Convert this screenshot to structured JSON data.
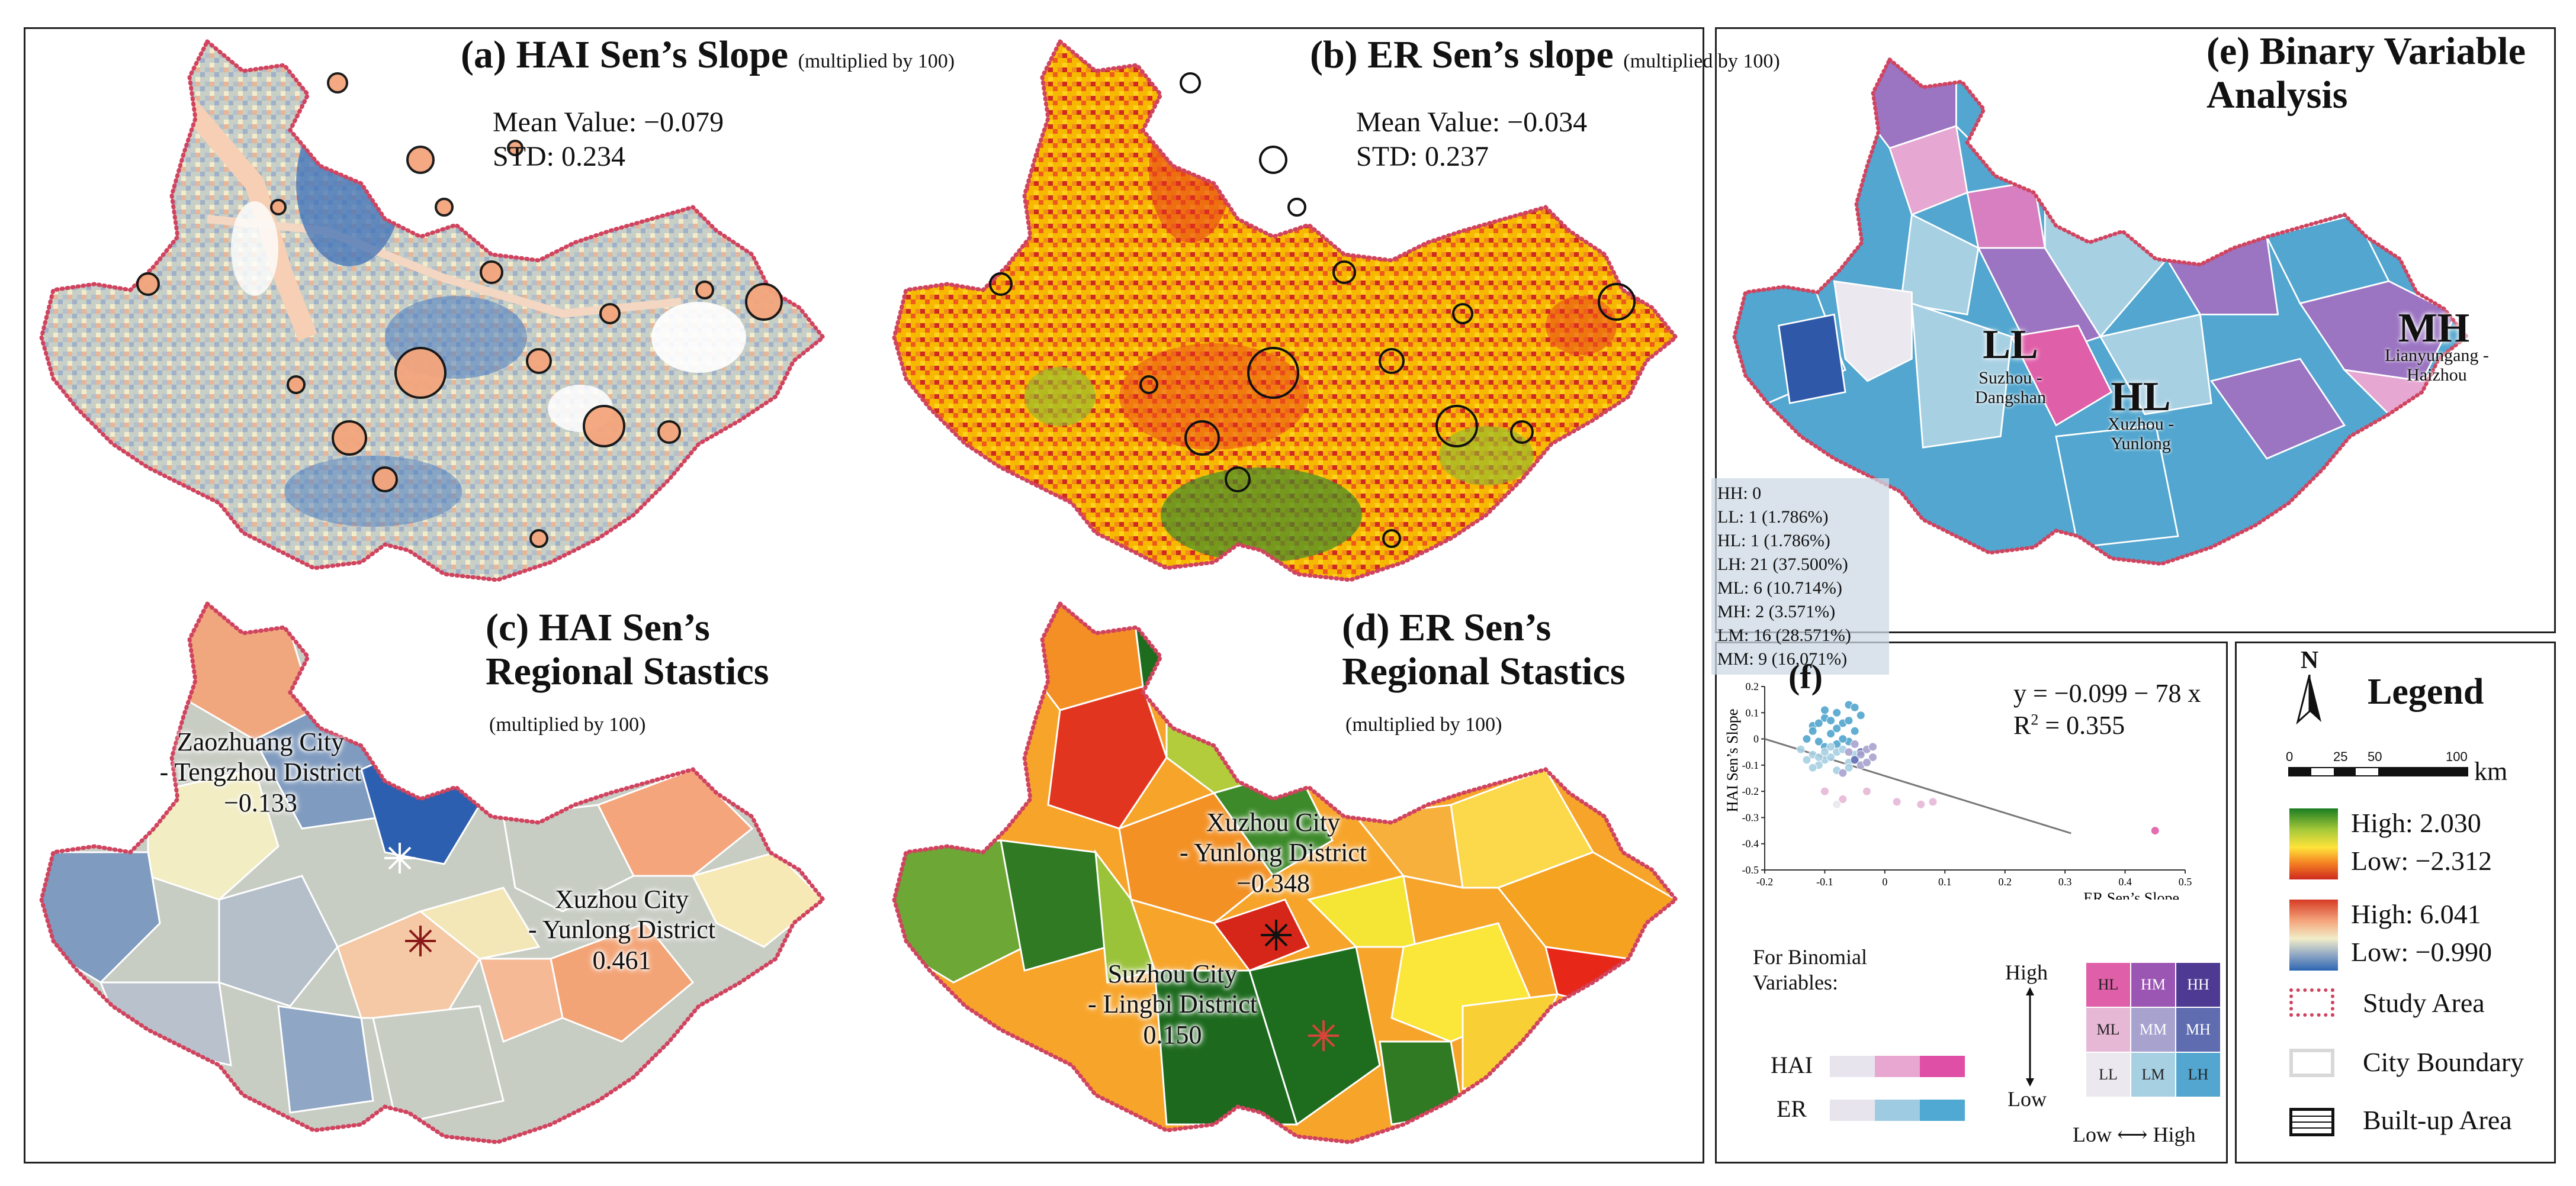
{
  "panel_a": {
    "title": "(a) HAI Sen’s Slope",
    "note": "(multiplied by 100)",
    "mean": "Mean Value: −0.079",
    "std": "STD: 0.234"
  },
  "panel_b": {
    "title": "(b) ER Sen’s slope",
    "note": "(multiplied by 100)",
    "mean": "Mean Value: −0.034",
    "std": "STD: 0.237"
  },
  "panel_c": {
    "title_line1": "(c) HAI Sen’s",
    "title_line2": "Regional Stastics",
    "note": "(multiplied by 100)",
    "label1_line1": "Zaozhuang City",
    "label1_line2": "- Tengzhou District",
    "label1_value": "−0.133",
    "label2_line1": "Xuzhou City",
    "label2_line2": "- Yunlong District",
    "label2_value": "0.461"
  },
  "panel_d": {
    "title_line1": "(d) ER Sen’s",
    "title_line2": "Regional Stastics",
    "note": "(multiplied by 100)",
    "label1_line1": "Xuzhou City",
    "label1_line2": "- Yunlong District",
    "label1_value": "−0.348",
    "label2_line1": "Suzhou City",
    "label2_line2": "- Lingbi District",
    "label2_value": "0.150"
  },
  "panel_e": {
    "title_line1": "(e) Binary Variable",
    "title_line2": "Analysis",
    "ll": {
      "code": "LL",
      "line1": "Suzhou -",
      "line2": "Dangshan"
    },
    "hl": {
      "code": "HL",
      "line1": "Xuzhou -",
      "line2": "Yunlong"
    },
    "mh": {
      "code": "MH",
      "line1": "Lianyungang -",
      "line2": "Haizhou"
    },
    "counts": [
      "HH: 0",
      "LL: 1    (1.786%)",
      "HL: 1    (1.786%)",
      "LH: 21  (37.500%)",
      "ML: 6   (10.714%)",
      "MH: 2   (3.571%)",
      "LM: 16 (28.571%)",
      "MM: 9   (16.071%)"
    ]
  },
  "panel_f": {
    "label": "(f)",
    "equation": "y = −0.099 − 78 x",
    "r2_prefix": "R",
    "r2_sup": "2",
    "r2_value": " = 0.355",
    "xlabel": "ER Sen’s Slope",
    "ylabel": "HAI Sen’s Slope",
    "binomial_title_line1": "For Binomial",
    "binomial_title_line2": "Variables:",
    "hai": "HAI",
    "er": "ER",
    "high": "High",
    "low": "Low",
    "low_high": "Low ⟷ High",
    "matrix": [
      [
        "HL",
        "HM",
        "HH"
      ],
      [
        "ML",
        "MM",
        "MH"
      ],
      [
        "LL",
        "LM",
        "LH"
      ]
    ],
    "matrix_colors": [
      [
        "#df5fa8",
        "#9b55b3",
        "#4f3a93"
      ],
      [
        "#e6b8d6",
        "#a8a2cf",
        "#5f6cb0"
      ],
      [
        "#ebe8ef",
        "#a7d0e3",
        "#52a6cf"
      ]
    ],
    "hai_colors": [
      "#e8e4ee",
      "#e8a7d0",
      "#de4fa5"
    ],
    "er_colors": [
      "#e8e4ee",
      "#9fcbe2",
      "#4fa9d2"
    ]
  },
  "chart_data": {
    "type": "scatter",
    "title": "",
    "xlabel": "ER Sen’s Slope",
    "ylabel": "HAI Sen’s Slope",
    "xlim": [
      -0.2,
      0.5
    ],
    "ylim": [
      -0.5,
      0.2
    ],
    "xticks": [
      "-0.2",
      "-0.1",
      "0",
      "0.1",
      "0.2",
      "0.3",
      "0.4",
      "0.5"
    ],
    "yticks": [
      "0.2",
      "0.1",
      "0",
      "-0.1",
      "-0.2",
      "-0.3",
      "-0.4",
      "-0.5"
    ],
    "trend": {
      "x": [
        -0.2,
        0.31
      ],
      "y": [
        0.0,
        -0.36
      ]
    },
    "points": [
      {
        "x": -0.12,
        "y": 0.05,
        "c": "#52a6cf"
      },
      {
        "x": -0.1,
        "y": 0.08,
        "c": "#52a6cf"
      },
      {
        "x": -0.08,
        "y": 0.1,
        "c": "#52a6cf"
      },
      {
        "x": -0.06,
        "y": 0.13,
        "c": "#52a6cf"
      },
      {
        "x": -0.09,
        "y": 0.02,
        "c": "#52a6cf"
      },
      {
        "x": -0.11,
        "y": -0.01,
        "c": "#52a6cf"
      },
      {
        "x": -0.07,
        "y": 0.06,
        "c": "#52a6cf"
      },
      {
        "x": -0.05,
        "y": 0.03,
        "c": "#52a6cf"
      },
      {
        "x": -0.13,
        "y": 0.0,
        "c": "#52a6cf"
      },
      {
        "x": -0.08,
        "y": -0.02,
        "c": "#52a6cf"
      },
      {
        "x": -0.1,
        "y": 0.11,
        "c": "#52a6cf"
      },
      {
        "x": -0.04,
        "y": 0.09,
        "c": "#52a6cf"
      },
      {
        "x": -0.06,
        "y": -0.01,
        "c": "#52a6cf"
      },
      {
        "x": -0.12,
        "y": 0.03,
        "c": "#52a6cf"
      },
      {
        "x": -0.09,
        "y": 0.07,
        "c": "#52a6cf"
      },
      {
        "x": -0.07,
        "y": 0.0,
        "c": "#52a6cf"
      },
      {
        "x": -0.11,
        "y": 0.06,
        "c": "#52a6cf"
      },
      {
        "x": -0.05,
        "y": 0.12,
        "c": "#52a6cf"
      },
      {
        "x": -0.08,
        "y": 0.04,
        "c": "#52a6cf"
      },
      {
        "x": -0.1,
        "y": -0.03,
        "c": "#52a6cf"
      },
      {
        "x": -0.06,
        "y": 0.07,
        "c": "#52a6cf"
      },
      {
        "x": -0.14,
        "y": -0.04,
        "c": "#a7d0e3"
      },
      {
        "x": -0.12,
        "y": -0.06,
        "c": "#a7d0e3"
      },
      {
        "x": -0.1,
        "y": -0.08,
        "c": "#a7d0e3"
      },
      {
        "x": -0.08,
        "y": -0.05,
        "c": "#a7d0e3"
      },
      {
        "x": -0.06,
        "y": -0.09,
        "c": "#a7d0e3"
      },
      {
        "x": -0.11,
        "y": -0.1,
        "c": "#a7d0e3"
      },
      {
        "x": -0.09,
        "y": -0.07,
        "c": "#a7d0e3"
      },
      {
        "x": -0.13,
        "y": -0.08,
        "c": "#a7d0e3"
      },
      {
        "x": -0.07,
        "y": -0.04,
        "c": "#a7d0e3"
      },
      {
        "x": -0.1,
        "y": -0.05,
        "c": "#a7d0e3"
      },
      {
        "x": -0.12,
        "y": -0.11,
        "c": "#a7d0e3"
      },
      {
        "x": -0.05,
        "y": -0.06,
        "c": "#a7d0e3"
      },
      {
        "x": -0.08,
        "y": -0.12,
        "c": "#a7d0e3"
      },
      {
        "x": -0.11,
        "y": -0.07,
        "c": "#a7d0e3"
      },
      {
        "x": -0.09,
        "y": -0.03,
        "c": "#a7d0e3"
      },
      {
        "x": -0.06,
        "y": -0.11,
        "c": "#a7d0e3"
      },
      {
        "x": -0.04,
        "y": -0.05,
        "c": "#5f6cb0"
      },
      {
        "x": -0.05,
        "y": -0.08,
        "c": "#5f6cb0"
      },
      {
        "x": -0.03,
        "y": -0.04,
        "c": "#a8a2cf"
      },
      {
        "x": -0.04,
        "y": -0.1,
        "c": "#a8a2cf"
      },
      {
        "x": -0.06,
        "y": -0.05,
        "c": "#a8a2cf"
      },
      {
        "x": -0.02,
        "y": -0.07,
        "c": "#a8a2cf"
      },
      {
        "x": -0.05,
        "y": -0.02,
        "c": "#a8a2cf"
      },
      {
        "x": -0.03,
        "y": -0.09,
        "c": "#a8a2cf"
      },
      {
        "x": -0.07,
        "y": -0.13,
        "c": "#a8a2cf"
      },
      {
        "x": -0.04,
        "y": -0.06,
        "c": "#a8a2cf"
      },
      {
        "x": -0.02,
        "y": -0.03,
        "c": "#a8a2cf"
      },
      {
        "x": -0.1,
        "y": -0.2,
        "c": "#e6b8d6"
      },
      {
        "x": -0.07,
        "y": -0.23,
        "c": "#e6b8d6"
      },
      {
        "x": -0.03,
        "y": -0.2,
        "c": "#e6b8d6"
      },
      {
        "x": 0.02,
        "y": -0.24,
        "c": "#e6b8d6"
      },
      {
        "x": 0.06,
        "y": -0.25,
        "c": "#e6b8d6"
      },
      {
        "x": 0.08,
        "y": -0.24,
        "c": "#e6b8d6"
      },
      {
        "x": -0.08,
        "y": -0.25,
        "c": "#ebe8ef"
      },
      {
        "x": 0.45,
        "y": -0.35,
        "c": "#df5fa8"
      }
    ]
  },
  "legend": {
    "north": "N",
    "title": "Legend",
    "scale_ticks": [
      "0",
      "25",
      "50",
      "100"
    ],
    "scale_unit": "km",
    "er_high": "High: 2.030",
    "er_low": "Low: −2.312",
    "hai_high": "High: 6.041",
    "hai_low": "Low: −0.990",
    "study_area": "Study Area",
    "city_boundary": "City Boundary",
    "built_up": "Built-up Area"
  },
  "colors": {
    "boundary": "#d0445f",
    "map_a_bg": "#c5cdc5",
    "map_b_bg": "#f4b400",
    "er_ramp": [
      "#cf2a1f",
      "#f37d22",
      "#ffe33a",
      "#a6c93a",
      "#1b7d22"
    ],
    "hai_ramp": [
      "#2d66b2",
      "#8fa6c5",
      "#f1edc8",
      "#f4a57c",
      "#d63c25"
    ]
  }
}
